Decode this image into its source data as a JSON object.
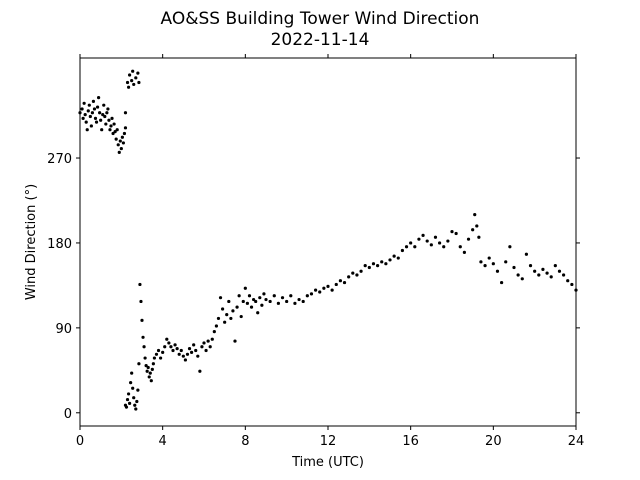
{
  "chart_data": {
    "type": "scatter",
    "title": "AO&SS Building Tower Wind Direction",
    "subtitle": "2022-11-14",
    "xlabel": "Time (UTC)",
    "ylabel": "Wind Direction (°)",
    "xlim": [
      0,
      24
    ],
    "ylim": [
      -14,
      376
    ],
    "xticks": [
      0,
      4,
      8,
      12,
      16,
      20,
      24
    ],
    "yticks": [
      0,
      90,
      180,
      270
    ],
    "grid": false,
    "marker_color": "#000000",
    "series": [
      {
        "points": [
          [
            0.0,
            318
          ],
          [
            0.1,
            322
          ],
          [
            0.15,
            312
          ],
          [
            0.2,
            328
          ],
          [
            0.25,
            316
          ],
          [
            0.3,
            308
          ],
          [
            0.35,
            300
          ],
          [
            0.4,
            320
          ],
          [
            0.45,
            326
          ],
          [
            0.5,
            314
          ],
          [
            0.55,
            304
          ],
          [
            0.6,
            318
          ],
          [
            0.65,
            330
          ],
          [
            0.7,
            322
          ],
          [
            0.75,
            312
          ],
          [
            0.8,
            308
          ],
          [
            0.85,
            324
          ],
          [
            0.9,
            334
          ],
          [
            0.95,
            318
          ],
          [
            1.0,
            310
          ],
          [
            1.05,
            300
          ],
          [
            1.1,
            316
          ],
          [
            1.15,
            326
          ],
          [
            1.2,
            314
          ],
          [
            1.25,
            306
          ],
          [
            1.3,
            318
          ],
          [
            1.35,
            322
          ],
          [
            1.4,
            310
          ],
          [
            1.45,
            300
          ],
          [
            1.5,
            304
          ],
          [
            1.55,
            312
          ],
          [
            1.6,
            296
          ],
          [
            1.65,
            306
          ],
          [
            1.7,
            298
          ],
          [
            1.75,
            290
          ],
          [
            1.8,
            300
          ],
          [
            1.85,
            284
          ],
          [
            1.9,
            276
          ],
          [
            1.95,
            288
          ],
          [
            2.0,
            280
          ],
          [
            2.05,
            292
          ],
          [
            2.1,
            286
          ],
          [
            2.15,
            296
          ],
          [
            2.2,
            302
          ],
          [
            2.2,
            318
          ],
          [
            2.3,
            350
          ],
          [
            2.35,
            345
          ],
          [
            2.4,
            358
          ],
          [
            2.5,
            352
          ],
          [
            2.55,
            362
          ],
          [
            2.6,
            348
          ],
          [
            2.7,
            355
          ],
          [
            2.8,
            360
          ],
          [
            2.85,
            350
          ],
          [
            2.2,
            8
          ],
          [
            2.25,
            6
          ],
          [
            2.3,
            14
          ],
          [
            2.35,
            20
          ],
          [
            2.4,
            10
          ],
          [
            2.45,
            32
          ],
          [
            2.5,
            42
          ],
          [
            2.55,
            26
          ],
          [
            2.6,
            16
          ],
          [
            2.65,
            8
          ],
          [
            2.7,
            4
          ],
          [
            2.75,
            12
          ],
          [
            2.8,
            24
          ],
          [
            2.85,
            52
          ],
          [
            2.9,
            136
          ],
          [
            2.95,
            118
          ],
          [
            3.0,
            98
          ],
          [
            3.05,
            80
          ],
          [
            3.1,
            70
          ],
          [
            3.15,
            58
          ],
          [
            3.2,
            50
          ],
          [
            3.25,
            44
          ],
          [
            3.3,
            48
          ],
          [
            3.35,
            38
          ],
          [
            3.4,
            42
          ],
          [
            3.45,
            34
          ],
          [
            3.5,
            46
          ],
          [
            3.55,
            52
          ],
          [
            3.6,
            58
          ],
          [
            3.7,
            62
          ],
          [
            3.8,
            66
          ],
          [
            3.9,
            58
          ],
          [
            4.0,
            64
          ],
          [
            4.1,
            70
          ],
          [
            4.2,
            78
          ],
          [
            4.3,
            74
          ],
          [
            4.4,
            70
          ],
          [
            4.5,
            66
          ],
          [
            4.6,
            72
          ],
          [
            4.7,
            68
          ],
          [
            4.8,
            62
          ],
          [
            4.9,
            66
          ],
          [
            5.0,
            60
          ],
          [
            5.1,
            56
          ],
          [
            5.2,
            62
          ],
          [
            5.3,
            68
          ],
          [
            5.4,
            64
          ],
          [
            5.5,
            72
          ],
          [
            5.6,
            66
          ],
          [
            5.7,
            60
          ],
          [
            5.8,
            44
          ],
          [
            5.9,
            70
          ],
          [
            6.0,
            74
          ],
          [
            6.1,
            66
          ],
          [
            6.2,
            76
          ],
          [
            6.3,
            70
          ],
          [
            6.4,
            78
          ],
          [
            6.5,
            86
          ],
          [
            6.6,
            92
          ],
          [
            6.7,
            100
          ],
          [
            6.8,
            122
          ],
          [
            6.9,
            110
          ],
          [
            7.0,
            96
          ],
          [
            7.1,
            104
          ],
          [
            7.2,
            118
          ],
          [
            7.3,
            100
          ],
          [
            7.4,
            108
          ],
          [
            7.5,
            76
          ],
          [
            7.6,
            112
          ],
          [
            7.7,
            124
          ],
          [
            7.8,
            102
          ],
          [
            7.9,
            118
          ],
          [
            8.0,
            132
          ],
          [
            8.1,
            116
          ],
          [
            8.2,
            124
          ],
          [
            8.3,
            112
          ],
          [
            8.4,
            120
          ],
          [
            8.5,
            118
          ],
          [
            8.6,
            106
          ],
          [
            8.7,
            122
          ],
          [
            8.8,
            114
          ],
          [
            8.9,
            126
          ],
          [
            9.0,
            120
          ],
          [
            9.2,
            118
          ],
          [
            9.4,
            124
          ],
          [
            9.6,
            116
          ],
          [
            9.8,
            122
          ],
          [
            10.0,
            118
          ],
          [
            10.2,
            124
          ],
          [
            10.4,
            116
          ],
          [
            10.6,
            120
          ],
          [
            10.8,
            118
          ],
          [
            11.0,
            124
          ],
          [
            11.2,
            126
          ],
          [
            11.4,
            130
          ],
          [
            11.6,
            128
          ],
          [
            11.8,
            132
          ],
          [
            12.0,
            134
          ],
          [
            12.2,
            130
          ],
          [
            12.4,
            136
          ],
          [
            12.6,
            140
          ],
          [
            12.8,
            138
          ],
          [
            13.0,
            144
          ],
          [
            13.2,
            148
          ],
          [
            13.4,
            146
          ],
          [
            13.6,
            150
          ],
          [
            13.8,
            156
          ],
          [
            14.0,
            154
          ],
          [
            14.2,
            158
          ],
          [
            14.4,
            156
          ],
          [
            14.6,
            160
          ],
          [
            14.8,
            158
          ],
          [
            15.0,
            162
          ],
          [
            15.2,
            166
          ],
          [
            15.4,
            164
          ],
          [
            15.6,
            172
          ],
          [
            15.8,
            176
          ],
          [
            16.0,
            180
          ],
          [
            16.2,
            176
          ],
          [
            16.4,
            184
          ],
          [
            16.6,
            188
          ],
          [
            16.8,
            182
          ],
          [
            17.0,
            178
          ],
          [
            17.2,
            186
          ],
          [
            17.4,
            180
          ],
          [
            17.6,
            176
          ],
          [
            17.8,
            182
          ],
          [
            18.0,
            192
          ],
          [
            18.2,
            190
          ],
          [
            18.4,
            176
          ],
          [
            18.6,
            170
          ],
          [
            18.8,
            184
          ],
          [
            19.0,
            194
          ],
          [
            19.1,
            210
          ],
          [
            19.2,
            198
          ],
          [
            19.3,
            186
          ],
          [
            19.4,
            160
          ],
          [
            19.6,
            156
          ],
          [
            19.8,
            164
          ],
          [
            20.0,
            158
          ],
          [
            20.2,
            150
          ],
          [
            20.4,
            138
          ],
          [
            20.6,
            160
          ],
          [
            20.8,
            176
          ],
          [
            21.0,
            154
          ],
          [
            21.2,
            146
          ],
          [
            21.4,
            142
          ],
          [
            21.6,
            168
          ],
          [
            21.8,
            156
          ],
          [
            22.0,
            150
          ],
          [
            22.2,
            146
          ],
          [
            22.4,
            152
          ],
          [
            22.6,
            148
          ],
          [
            22.8,
            144
          ],
          [
            23.0,
            156
          ],
          [
            23.2,
            150
          ],
          [
            23.4,
            146
          ],
          [
            23.6,
            140
          ],
          [
            23.8,
            136
          ],
          [
            24.0,
            130
          ]
        ]
      }
    ]
  }
}
